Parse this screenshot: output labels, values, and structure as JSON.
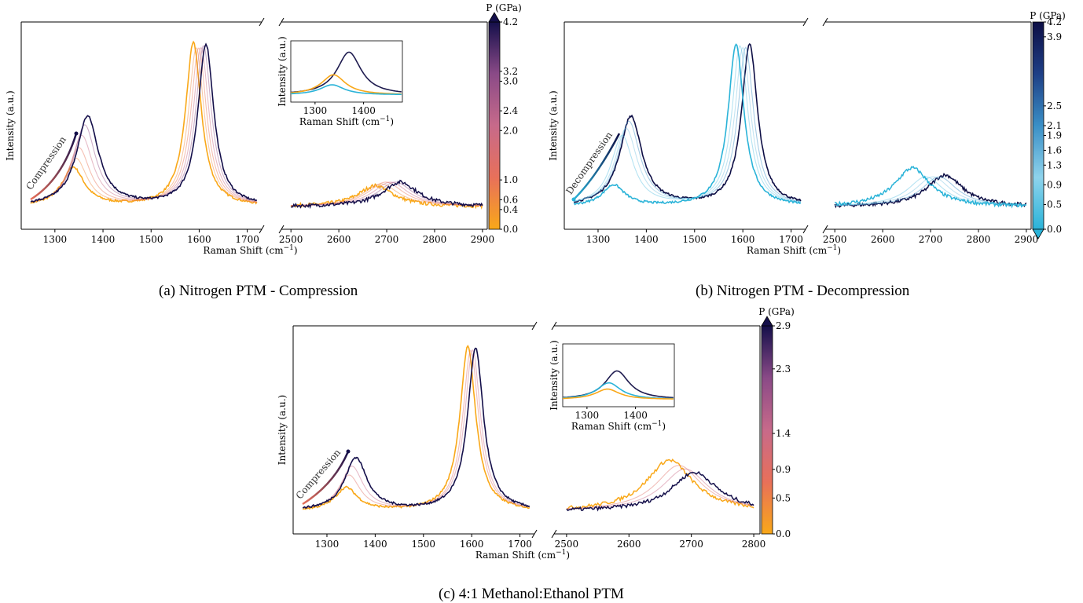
{
  "captions": {
    "a": "(a) Nitrogen PTM - Compression",
    "b": "(b) Nitrogen PTM - Decompression",
    "c": "(c) 4:1 Methanol:Ethanol PTM"
  },
  "chart_data": [
    {
      "id": "a",
      "type": "line",
      "ylabel": "Intensity (a.u.)",
      "xlabel": "Raman Shift (cm$^{-1}$)",
      "xlabel_text": "Raman Shift (cm",
      "xlabel_sup": "−1",
      "xlabel_close": ")",
      "xlim_left": [
        1230,
        1730
      ],
      "xlim_right": [
        2480,
        2910
      ],
      "xticks_left": [
        "1300",
        "1400",
        "1500",
        "1600",
        "1700"
      ],
      "xticks_right": [
        "2500",
        "2600",
        "2700",
        "2800",
        "2900"
      ],
      "arrow_label": "Compression",
      "colorbar": {
        "label": "P (GPa)",
        "range": [
          0.0,
          4.2
        ],
        "ticks": [
          "0.0",
          "0.4",
          "0.6",
          "1.0",
          "2.0",
          "2.4",
          "3.0",
          "3.2",
          "4.2"
        ],
        "colors": [
          "#f9a819",
          "#e8705a",
          "#c76a8a",
          "#8a4a87",
          "#140f4a"
        ],
        "extend": "max"
      },
      "series": [
        {
          "pressure": 0.0,
          "D": [
            1338,
            0.22
          ],
          "G": [
            1588,
            0.93
          ],
          "D2": [
            2677,
            0.12
          ]
        },
        {
          "pressure": 0.6,
          "D": [
            1344,
            0.27
          ],
          "G": [
            1594,
            0.9
          ],
          "D2": [
            2688,
            0.13
          ]
        },
        {
          "pressure": 1.0,
          "D": [
            1350,
            0.33
          ],
          "G": [
            1599,
            0.9
          ],
          "D2": [
            2698,
            0.14
          ]
        },
        {
          "pressure": 2.0,
          "D": [
            1356,
            0.4
          ],
          "G": [
            1604,
            0.9
          ],
          "D2": [
            2708,
            0.14
          ]
        },
        {
          "pressure": 3.0,
          "D": [
            1362,
            0.46
          ],
          "G": [
            1609,
            0.91
          ],
          "D2": [
            2718,
            0.14
          ]
        },
        {
          "pressure": 4.2,
          "D": [
            1368,
            0.51
          ],
          "G": [
            1614,
            0.92
          ],
          "D2": [
            2728,
            0.14
          ]
        }
      ],
      "inset": {
        "ylabel": "Intensity (a.u.)",
        "xticks": [
          "1300",
          "1400"
        ],
        "xlim": [
          1250,
          1480
        ],
        "lines": [
          {
            "color": "#1e1b4f",
            "center": 1370,
            "amplitude": 0.85
          },
          {
            "color": "#f9a819",
            "center": 1338,
            "amplitude": 0.4
          },
          {
            "color": "#2ab3d8",
            "center": 1335,
            "amplitude": 0.2
          }
        ]
      }
    },
    {
      "id": "b",
      "type": "line",
      "ylabel": "Intensity (a.u.)",
      "xlabel_text": "Raman Shift (cm",
      "xlabel_sup": "−1",
      "xlabel_close": ")",
      "xlim_left": [
        1230,
        1730
      ],
      "xlim_right": [
        2480,
        2910
      ],
      "xticks_left": [
        "1300",
        "1400",
        "1500",
        "1600",
        "1700"
      ],
      "xticks_right": [
        "2500",
        "2600",
        "2700",
        "2800",
        "2900"
      ],
      "arrow_label": "Decompression",
      "colorbar": {
        "label": "P (GPa)",
        "range": [
          0.0,
          4.2
        ],
        "ticks": [
          "0.0",
          "0.5",
          "0.9",
          "1.3",
          "1.6",
          "1.9",
          "2.1",
          "2.5",
          "3.9",
          "4.2"
        ],
        "colors": [
          "#2ab3d8",
          "#8ed3ec",
          "#3a8fc6",
          "#1e3f86",
          "#0d0e45"
        ],
        "extend": "min"
      },
      "series": [
        {
          "pressure": 4.2,
          "D": [
            1368,
            0.51
          ],
          "G": [
            1614,
            0.92
          ],
          "D2": [
            2730,
            0.18
          ]
        },
        {
          "pressure": 2.1,
          "D": [
            1364,
            0.48
          ],
          "G": [
            1606,
            0.9
          ],
          "D2": [
            2718,
            0.17
          ]
        },
        {
          "pressure": 1.3,
          "D": [
            1358,
            0.44
          ],
          "G": [
            1600,
            0.9
          ],
          "D2": [
            2705,
            0.17
          ]
        },
        {
          "pressure": 0.5,
          "D": [
            1350,
            0.4
          ],
          "G": [
            1594,
            0.91
          ],
          "D2": [
            2690,
            0.17
          ]
        },
        {
          "pressure": 0.0,
          "D": [
            1332,
            0.12
          ],
          "G": [
            1586,
            0.92
          ],
          "D2": [
            2662,
            0.22
          ]
        }
      ]
    },
    {
      "id": "c",
      "type": "line",
      "ylabel": "Intensity (a.u.)",
      "xlabel_text": "Raman Shift (cm",
      "xlabel_sup": "−1",
      "xlabel_close": ")",
      "xlim_left": [
        1230,
        1730
      ],
      "xlim_right": [
        2480,
        2810
      ],
      "xticks_left": [
        "1300",
        "1400",
        "1500",
        "1600",
        "1700"
      ],
      "xticks_right": [
        "2500",
        "2600",
        "2700",
        "2800"
      ],
      "arrow_label": "Compression",
      "colorbar": {
        "label": "P (GPa)",
        "range": [
          0.0,
          2.9
        ],
        "ticks": [
          "0.0",
          "0.5",
          "0.9",
          "1.4",
          "2.3",
          "2.9"
        ],
        "colors": [
          "#f9a819",
          "#e8705a",
          "#c76a8a",
          "#8a4a87",
          "#140f4a"
        ],
        "extend": "max"
      },
      "series": [
        {
          "pressure": 0.0,
          "D": [
            1340,
            0.13
          ],
          "G": [
            1592,
            0.93
          ],
          "D2": [
            2665,
            0.29
          ]
        },
        {
          "pressure": 0.9,
          "D": [
            1346,
            0.2
          ],
          "G": [
            1598,
            0.91
          ],
          "D2": [
            2680,
            0.26
          ]
        },
        {
          "pressure": 1.4,
          "D": [
            1352,
            0.25
          ],
          "G": [
            1602,
            0.91
          ],
          "D2": [
            2690,
            0.24
          ]
        },
        {
          "pressure": 2.9,
          "D": [
            1360,
            0.3
          ],
          "G": [
            1608,
            0.92
          ],
          "D2": [
            2705,
            0.22
          ]
        }
      ],
      "inset": {
        "ylabel": "Intensity (a.u.)",
        "xticks": [
          "1300",
          "1400"
        ],
        "xlim": [
          1250,
          1480
        ],
        "lines": [
          {
            "color": "#1e1b4f",
            "center": 1362,
            "amplitude": 0.55
          },
          {
            "color": "#2ab3d8",
            "center": 1345,
            "amplitude": 0.32
          },
          {
            "color": "#f9a819",
            "center": 1342,
            "amplitude": 0.2
          }
        ]
      }
    }
  ]
}
